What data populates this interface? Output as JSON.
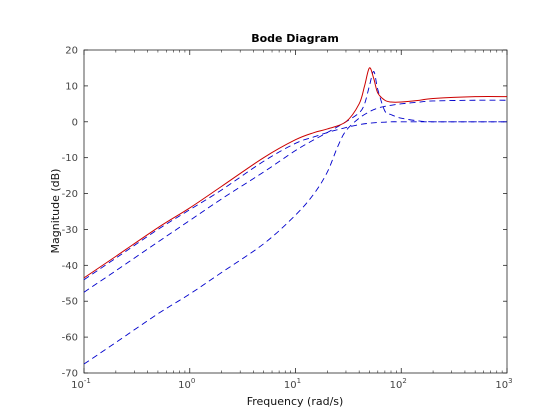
{
  "chart_data": {
    "type": "line",
    "title": "Bode Diagram",
    "xlabel": "Frequency  (rad/s)",
    "ylabel": "Magnitude (dB)",
    "xscale": "log",
    "xlim": [
      0.1,
      1000
    ],
    "ylim": [
      -70,
      20
    ],
    "x_ticks": [
      {
        "value": 0.1,
        "base": "10",
        "exp": "-1"
      },
      {
        "value": 1,
        "base": "10",
        "exp": "0"
      },
      {
        "value": 10,
        "base": "10",
        "exp": "1"
      },
      {
        "value": 100,
        "base": "10",
        "exp": "2"
      },
      {
        "value": 1000,
        "base": "10",
        "exp": "3"
      }
    ],
    "y_ticks": [
      20,
      10,
      0,
      -10,
      -20,
      -30,
      -40,
      -50,
      -60,
      -70
    ],
    "grid": false,
    "series": [
      {
        "color": "#0000cc",
        "style": "dashed",
        "x": [
          0.1,
          0.2,
          0.5,
          1,
          2,
          5,
          10,
          15,
          20,
          25,
          30,
          40,
          50,
          60,
          70,
          80,
          100,
          200,
          500,
          1000
        ],
        "y": [
          -44,
          -38,
          -30,
          -24.5,
          -19,
          -11,
          -6,
          -4.2,
          -3,
          -2.2,
          -1.6,
          -0.8,
          -0.4,
          -0.2,
          -0.1,
          0,
          0,
          0,
          0,
          0
        ]
      },
      {
        "color": "#0000cc",
        "style": "dashed",
        "x": [
          0.1,
          0.2,
          0.5,
          1,
          2,
          5,
          10,
          15,
          20,
          30,
          40,
          45,
          50,
          55,
          60,
          70,
          80,
          100,
          150,
          200,
          500,
          1000
        ],
        "y": [
          -47.5,
          -41.5,
          -33.5,
          -27.5,
          -21.5,
          -14,
          -8,
          -5,
          -3,
          0,
          2.5,
          5,
          10,
          14,
          9,
          3,
          2,
          1,
          0.2,
          0,
          0,
          0
        ]
      },
      {
        "color": "#0000cc",
        "style": "dashed",
        "x": [
          0.1,
          0.2,
          0.5,
          1,
          2,
          5,
          10,
          15,
          20,
          25,
          30,
          40,
          50,
          60,
          70,
          80,
          100,
          150,
          200,
          500,
          1000
        ],
        "y": [
          -67.5,
          -61.5,
          -53.5,
          -48,
          -42,
          -34,
          -26,
          -20,
          -14,
          -7,
          -2.5,
          1,
          2.8,
          3.8,
          4.3,
          4.6,
          5,
          5.5,
          5.8,
          6,
          6
        ]
      },
      {
        "color": "#cc0000",
        "style": "solid",
        "x": [
          0.1,
          0.2,
          0.5,
          1,
          2,
          5,
          10,
          15,
          20,
          30,
          40,
          45,
          50,
          55,
          60,
          70,
          80,
          100,
          150,
          200,
          500,
          1000
        ],
        "y": [
          -43.5,
          -37.5,
          -29.5,
          -24,
          -18,
          -10,
          -5,
          -3,
          -2,
          0,
          5,
          10,
          15,
          12,
          8,
          6,
          5.5,
          5.5,
          6,
          6.5,
          7,
          7
        ]
      }
    ]
  }
}
